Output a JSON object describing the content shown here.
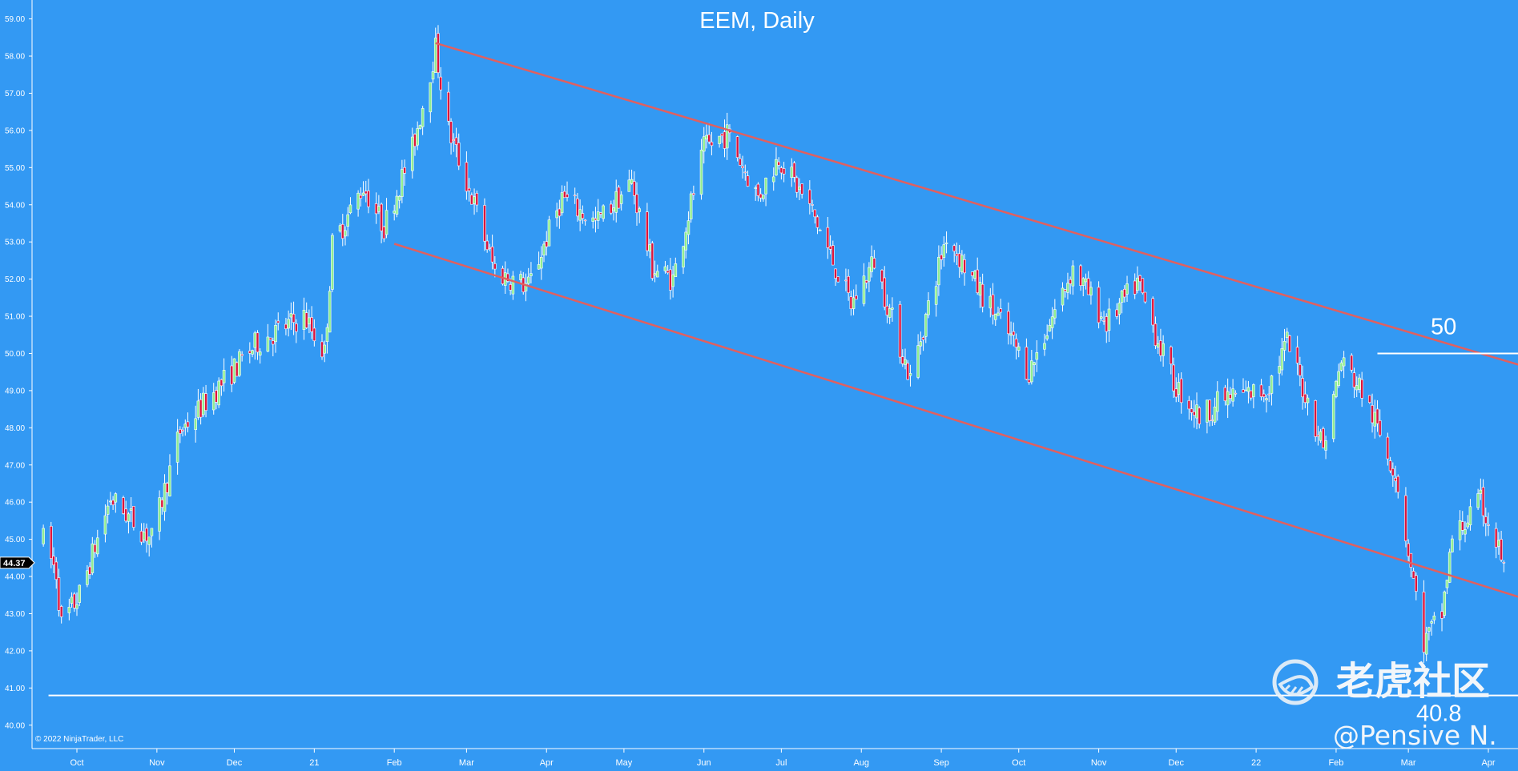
{
  "chart_data": {
    "type": "candlestick",
    "title": "EEM, Daily",
    "symbol": "EEM",
    "interval": "Daily",
    "copyright": "© 2022 NinjaTrader, LLC",
    "y_axis": {
      "range": [
        39.65,
        59.25
      ],
      "tick_labels": [
        "40.00",
        "41.00",
        "42.00",
        "43.00",
        "44.00",
        "45.00",
        "46.00",
        "47.00",
        "48.00",
        "49.00",
        "50.00",
        "51.00",
        "52.00",
        "53.00",
        "54.00",
        "55.00",
        "56.00",
        "57.00",
        "58.00",
        "59.00"
      ],
      "last_price_label": "44.37",
      "last_price": 44.37
    },
    "x_axis": {
      "tick_labels": [
        "Oct",
        "Nov",
        "Dec",
        "21",
        "Feb",
        "Mar",
        "Apr",
        "May",
        "Jun",
        "Jul",
        "Aug",
        "Sep",
        "Oct",
        "Nov",
        "Dec",
        "22",
        "Feb",
        "Mar",
        "Apr"
      ],
      "tick_dates": [
        "2020-10-01",
        "2020-11-01",
        "2020-12-01",
        "2021-01-01",
        "2021-02-01",
        "2021-03-01",
        "2021-04-01",
        "2021-05-01",
        "2021-06-01",
        "2021-07-01",
        "2021-08-01",
        "2021-09-01",
        "2021-10-01",
        "2021-11-01",
        "2021-12-01",
        "2022-01-01",
        "2022-02-01",
        "2022-03-01",
        "2022-04-01"
      ]
    },
    "price_path": [
      [
        "2020-09-18",
        45.0
      ],
      [
        "2020-09-23",
        44.1
      ],
      [
        "2020-09-25",
        42.7
      ],
      [
        "2020-10-02",
        43.5
      ],
      [
        "2020-10-14",
        46.1
      ],
      [
        "2020-10-30",
        45.0
      ],
      [
        "2020-11-10",
        47.9
      ],
      [
        "2020-11-20",
        48.7
      ],
      [
        "2020-12-10",
        50.3
      ],
      [
        "2020-12-28",
        51.0
      ],
      [
        "2021-01-05",
        50.0
      ],
      [
        "2021-01-08",
        52.9
      ],
      [
        "2021-01-20",
        54.5
      ],
      [
        "2021-01-28",
        53.4
      ],
      [
        "2021-02-08",
        55.5
      ],
      [
        "2021-02-17",
        58.2
      ],
      [
        "2021-02-22",
        56.0
      ],
      [
        "2021-03-04",
        54.0
      ],
      [
        "2021-03-12",
        52.2
      ],
      [
        "2021-03-25",
        51.8
      ],
      [
        "2021-04-07",
        54.2
      ],
      [
        "2021-04-20",
        53.5
      ],
      [
        "2021-05-04",
        54.6
      ],
      [
        "2021-05-12",
        52.3
      ],
      [
        "2021-05-20",
        52.0
      ],
      [
        "2021-06-01",
        55.5
      ],
      [
        "2021-06-10",
        55.9
      ],
      [
        "2021-06-22",
        54.2
      ],
      [
        "2021-06-30",
        55.3
      ],
      [
        "2021-07-13",
        53.8
      ],
      [
        "2021-07-28",
        51.3
      ],
      [
        "2021-08-06",
        52.5
      ],
      [
        "2021-08-20",
        49.3
      ],
      [
        "2021-09-03",
        53.2
      ],
      [
        "2021-09-13",
        52.0
      ],
      [
        "2021-09-28",
        50.4
      ],
      [
        "2021-10-05",
        49.5
      ],
      [
        "2021-10-22",
        52.3
      ],
      [
        "2021-11-04",
        50.8
      ],
      [
        "2021-11-16",
        51.9
      ],
      [
        "2021-11-30",
        49.2
      ],
      [
        "2021-12-10",
        48.3
      ],
      [
        "2021-12-20",
        48.8
      ],
      [
        "2022-01-05",
        49.0
      ],
      [
        "2022-01-13",
        50.3
      ],
      [
        "2022-01-27",
        47.5
      ],
      [
        "2022-02-03",
        49.8
      ],
      [
        "2022-02-11",
        49.0
      ],
      [
        "2022-02-24",
        46.8
      ],
      [
        "2022-03-07",
        42.2
      ],
      [
        "2022-03-14",
        43.0
      ],
      [
        "2022-03-18",
        45.0
      ],
      [
        "2022-03-29",
        46.0
      ],
      [
        "2022-04-07",
        44.37
      ]
    ],
    "annotations": {
      "resistance_line": {
        "label": "50",
        "price": 50.0,
        "from": "2022-02-17",
        "to": "2022-04-15"
      },
      "support_line": {
        "label": "40.8",
        "price": 40.8,
        "from": "2020-09-20",
        "to": "2022-04-15"
      },
      "channel_upper": {
        "from": [
          "2021-02-17",
          58.35
        ],
        "to": [
          "2022-04-15",
          49.65
        ]
      },
      "channel_lower": {
        "from": [
          "2021-02-01",
          52.95
        ],
        "to": [
          "2022-04-15",
          43.4
        ]
      }
    },
    "colors": {
      "background": "#3399f3",
      "up_candle": "#90ee90",
      "down_candle": "#dc143c",
      "channel": "#e06060",
      "level_line": "#ffffff",
      "text": "#ffffff"
    },
    "grid": false
  },
  "watermark": {
    "brand_text": "老虎社区",
    "author_text": "@Pensive N.",
    "logo_icon": "tiger-logo-icon"
  }
}
